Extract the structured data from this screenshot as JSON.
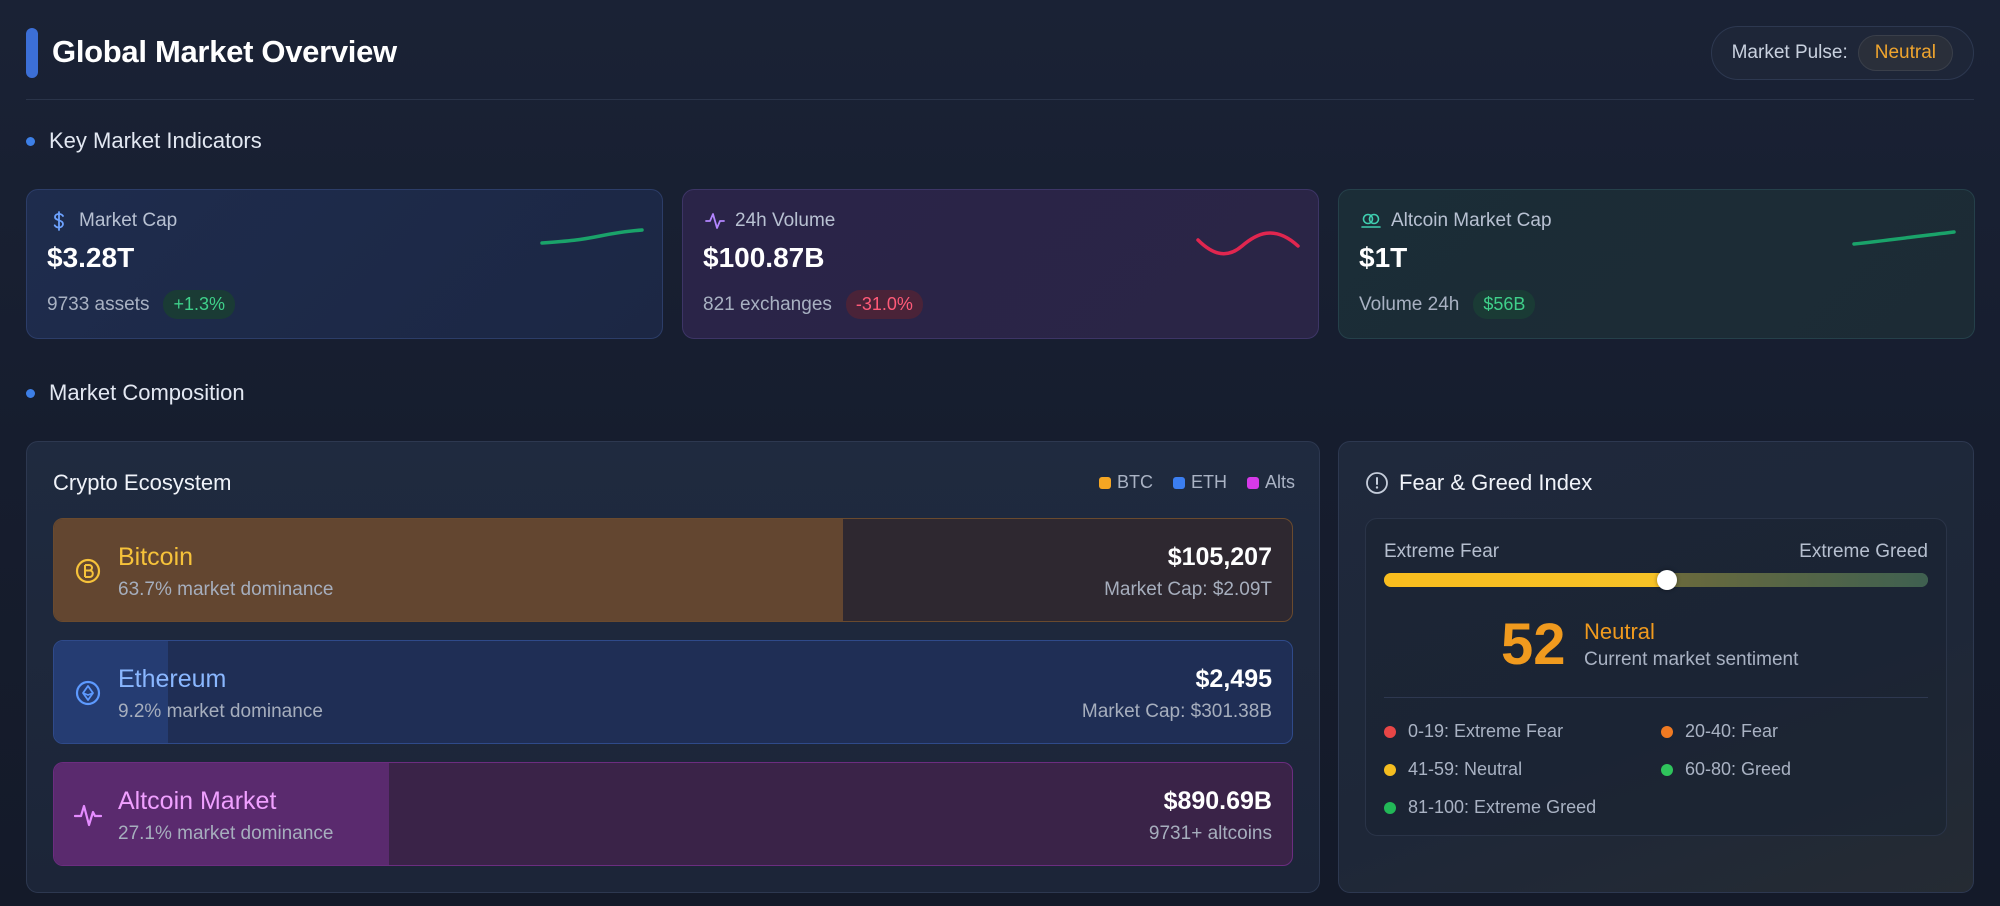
{
  "header": {
    "title": "Global Market Overview",
    "pulse_label": "Market Pulse:",
    "pulse_value": "Neutral"
  },
  "sections": {
    "indicators": "Key Market Indicators",
    "composition": "Market Composition"
  },
  "cards": [
    {
      "icon": "dollar-icon",
      "label": "Market Cap",
      "value": "$3.28T",
      "sub": "9733 assets",
      "chip": "+1.3%",
      "chip_tone": "positive",
      "trend_color": "#1aa36a"
    },
    {
      "icon": "activity-icon",
      "label": "24h Volume",
      "value": "$100.87B",
      "sub": "821 exchanges",
      "chip": "-31.0%",
      "chip_tone": "negative",
      "trend_color": "#e0264f"
    },
    {
      "icon": "coins-icon",
      "label": "Altcoin Market Cap",
      "value": "$1T",
      "sub": "Volume 24h",
      "chip": "$56B",
      "chip_tone": "positive",
      "trend_color": "#1aa36a"
    }
  ],
  "ecosystem": {
    "title": "Crypto Ecosystem",
    "legend": [
      {
        "label": "BTC",
        "color": "#f5a623"
      },
      {
        "label": "ETH",
        "color": "#3b7ef0"
      },
      {
        "label": "Alts",
        "color": "#d63ae8"
      }
    ],
    "assets": [
      {
        "name": "Bitcoin",
        "dominance": "63.7% market dominance",
        "dominance_pct": 63.7,
        "price": "$105,207",
        "detail": "Market Cap: $2.09T",
        "icon": "bitcoin-icon"
      },
      {
        "name": "Ethereum",
        "dominance": "9.2% market dominance",
        "dominance_pct": 9.2,
        "price": "$2,495",
        "detail": "Market Cap: $301.38B",
        "icon": "ethereum-icon"
      },
      {
        "name": "Altcoin Market",
        "dominance": "27.1% market dominance",
        "dominance_pct": 27.1,
        "price": "$890.69B",
        "detail": "9731+ altcoins",
        "icon": "pulse-icon"
      }
    ]
  },
  "fear_greed": {
    "title": "Fear & Greed Index",
    "scale_left": "Extreme Fear",
    "scale_right": "Extreme Greed",
    "score": "52",
    "score_value": 52,
    "state": "Neutral",
    "description": "Current market sentiment",
    "ranges": [
      {
        "label": "0-19: Extreme Fear",
        "color": "#e84646"
      },
      {
        "label": "20-40: Fear",
        "color": "#f07a22"
      },
      {
        "label": "41-59: Neutral",
        "color": "#f5bd1f"
      },
      {
        "label": "60-80: Greed",
        "color": "#2fc45c"
      },
      {
        "label": "81-100: Extreme Greed",
        "color": "#22b857"
      }
    ]
  }
}
